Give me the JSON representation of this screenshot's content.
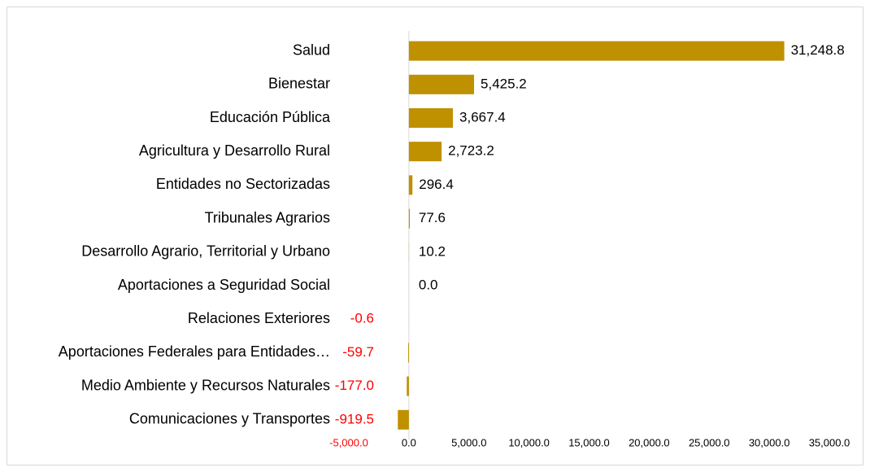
{
  "chart_data": {
    "type": "barh",
    "categories": [
      "Salud",
      "Bienestar",
      "Educación Pública",
      "Agricultura y Desarrollo Rural",
      "Entidades no Sectorizadas",
      "Tribunales Agrarios",
      "Desarrollo Agrario, Territorial y Urbano",
      "Aportaciones a Seguridad Social",
      "Relaciones Exteriores",
      "Aportaciones Federales para Entidades…",
      "Medio Ambiente y Recursos Naturales",
      "Comunicaciones y Transportes"
    ],
    "values": [
      31248.8,
      5425.2,
      3667.4,
      2723.2,
      296.4,
      77.6,
      10.2,
      0.0,
      -0.6,
      -59.7,
      -177.0,
      -919.5
    ],
    "value_labels": [
      "31,248.8",
      "5,425.2",
      "3,667.4",
      "2,723.2",
      "296.4",
      "77.6",
      "10.2",
      "0.0",
      "-0.6",
      "-59.7",
      "-177.0",
      "-919.5"
    ],
    "color": "#bf9000",
    "negative_label_color": "#ff0000",
    "xlim": [
      -5000,
      35000
    ],
    "xticks": [
      {
        "value": -5000,
        "label": "-5,000.0"
      },
      {
        "value": 0,
        "label": "0.0"
      },
      {
        "value": 5000,
        "label": "5,000.0"
      },
      {
        "value": 10000,
        "label": "10,000.0"
      },
      {
        "value": 15000,
        "label": "15,000.0"
      },
      {
        "value": 20000,
        "label": "20,000.0"
      },
      {
        "value": 25000,
        "label": "25,000.0"
      },
      {
        "value": 30000,
        "label": "30,000.0"
      },
      {
        "value": 35000,
        "label": "35,000.0"
      }
    ],
    "grid": false
  }
}
